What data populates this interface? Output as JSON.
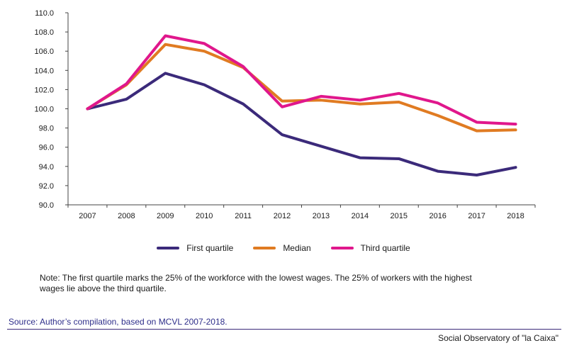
{
  "chart_data": {
    "type": "line",
    "categories": [
      "2007",
      "2008",
      "2009",
      "2010",
      "2011",
      "2012",
      "2013",
      "2014",
      "2015",
      "2016",
      "2017",
      "2018"
    ],
    "ylim": [
      90,
      110
    ],
    "yticks": [
      "90.0",
      "92.0",
      "94.0",
      "96.0",
      "98.0",
      "100.0",
      "102.0",
      "104.0",
      "106.0",
      "108.0",
      "110.0"
    ],
    "grid": false,
    "legend_position": "bottom",
    "series": [
      {
        "name": "First quartile",
        "color": "#3b2a7a",
        "values": [
          100.0,
          101.0,
          103.7,
          102.5,
          100.5,
          97.3,
          96.1,
          94.9,
          94.8,
          93.5,
          93.1,
          93.9
        ]
      },
      {
        "name": "Median",
        "color": "#e07b22",
        "values": [
          100.0,
          102.5,
          106.7,
          106.0,
          104.3,
          100.8,
          100.9,
          100.5,
          100.7,
          99.3,
          97.7,
          97.8
        ]
      },
      {
        "name": "Third quartile",
        "color": "#e0178c",
        "values": [
          100.0,
          102.6,
          107.6,
          106.8,
          104.4,
          100.2,
          101.3,
          100.9,
          101.6,
          100.6,
          98.6,
          98.4
        ]
      }
    ]
  },
  "note": "Note: The first quartile marks the 25% of the workforce with the lowest wages. The 25% of workers with the highest wages lie above the third quartile.",
  "source": "Source: Author’s compilation, based on MCVL 2007-2018.",
  "credit": "Social Observatory of \"la Caixa\""
}
